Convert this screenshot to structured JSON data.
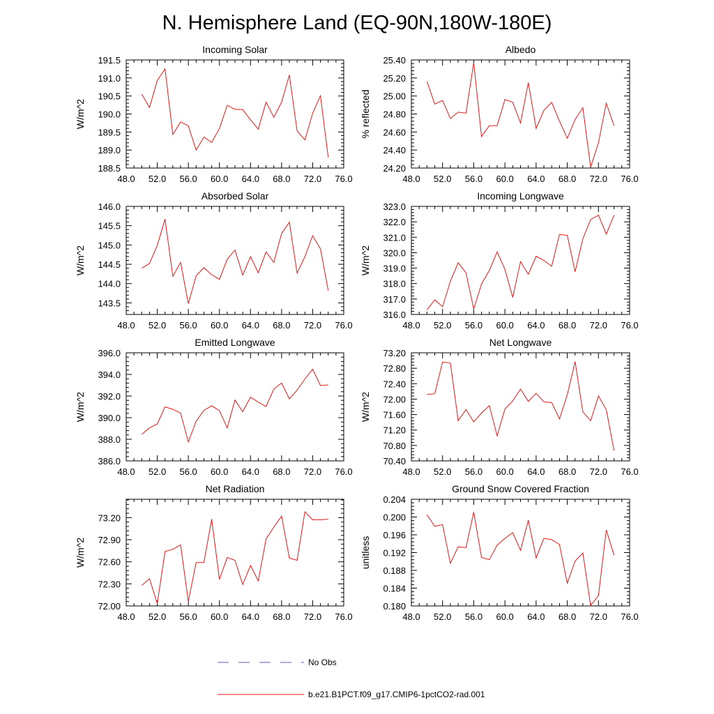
{
  "figure": {
    "title": "N. Hemisphere Land (EQ-90N,180W-180E)",
    "legend": {
      "entries": [
        {
          "label": "No Obs",
          "color": "#5b5bbd",
          "style": "dashed"
        },
        {
          "label": "b.e21.B1PCT.f09_g17.CMIP6-1pctCO2-rad.001",
          "color": "#e01818",
          "style": "solid"
        }
      ]
    }
  },
  "chart_data": [
    {
      "type": "line",
      "title": "Incoming Solar",
      "xlabel": "",
      "ylabel": "W/m^2",
      "xlim": [
        48,
        76
      ],
      "ylim": [
        188.5,
        191.5
      ],
      "xticks": [
        "48.0",
        "52.0",
        "56.0",
        "60.0",
        "64.0",
        "68.0",
        "72.0",
        "76.0"
      ],
      "yticks": [
        "188.5",
        "189.0",
        "189.5",
        "190.0",
        "190.5",
        "191.0",
        "191.5"
      ],
      "series": [
        {
          "color": "#e01818",
          "x": [
            50,
            51,
            52,
            53,
            54,
            55,
            56,
            57,
            58,
            59,
            60,
            61,
            62,
            63,
            64,
            65,
            66,
            67,
            68,
            69,
            70,
            71,
            72,
            73,
            74
          ],
          "y": [
            190.55,
            190.18,
            190.93,
            191.25,
            189.43,
            189.78,
            189.67,
            189.0,
            189.36,
            189.21,
            189.6,
            190.24,
            190.13,
            190.12,
            189.84,
            189.58,
            190.33,
            189.91,
            190.33,
            191.08,
            189.53,
            189.28,
            190.02,
            190.51,
            188.8
          ]
        }
      ]
    },
    {
      "type": "line",
      "title": "Albedo",
      "xlabel": "",
      "ylabel": "% reflected",
      "xlim": [
        48,
        76
      ],
      "ylim": [
        24.2,
        25.4
      ],
      "xticks": [
        "48.0",
        "52.0",
        "56.0",
        "60.0",
        "64.0",
        "68.0",
        "72.0",
        "76.0"
      ],
      "yticks": [
        "24.20",
        "24.40",
        "24.60",
        "24.80",
        "25.00",
        "25.20",
        "25.40"
      ],
      "series": [
        {
          "color": "#e01818",
          "x": [
            50,
            51,
            52,
            53,
            54,
            55,
            56,
            57,
            58,
            59,
            60,
            61,
            62,
            63,
            64,
            65,
            66,
            67,
            68,
            69,
            70,
            71,
            72,
            73,
            74
          ],
          "y": [
            25.16,
            24.91,
            24.95,
            24.75,
            24.82,
            24.81,
            25.37,
            24.55,
            24.67,
            24.67,
            24.96,
            24.93,
            24.7,
            25.15,
            24.64,
            24.84,
            24.93,
            24.72,
            24.53,
            24.74,
            24.87,
            24.21,
            24.48,
            24.92,
            24.67
          ]
        }
      ]
    },
    {
      "type": "line",
      "title": "Absorbed Solar",
      "xlabel": "",
      "ylabel": "W/m^2",
      "xlim": [
        48,
        76
      ],
      "ylim": [
        143.2,
        146.0
      ],
      "xticks": [
        "48.0",
        "52.0",
        "56.0",
        "60.0",
        "64.0",
        "68.0",
        "72.0",
        "76.0"
      ],
      "yticks": [
        "143.5",
        "144.0",
        "144.5",
        "145.0",
        "145.5",
        "146.0"
      ],
      "series": [
        {
          "color": "#e01818",
          "x": [
            50,
            51,
            52,
            53,
            54,
            55,
            56,
            57,
            58,
            59,
            60,
            61,
            62,
            63,
            64,
            65,
            66,
            67,
            68,
            69,
            70,
            71,
            72,
            73,
            74
          ],
          "y": [
            144.4,
            144.52,
            144.99,
            145.67,
            144.19,
            144.55,
            143.48,
            144.2,
            144.41,
            144.23,
            144.11,
            144.63,
            144.87,
            144.22,
            144.7,
            144.28,
            144.82,
            144.55,
            145.3,
            145.59,
            144.27,
            144.7,
            145.24,
            144.9,
            143.82
          ]
        }
      ]
    },
    {
      "type": "line",
      "title": "Incoming Longwave",
      "xlabel": "",
      "ylabel": "W/m^2",
      "xlim": [
        48,
        76
      ],
      "ylim": [
        316.0,
        323.0
      ],
      "xticks": [
        "48.0",
        "52.0",
        "56.0",
        "60.0",
        "64.0",
        "68.0",
        "72.0",
        "76.0"
      ],
      "yticks": [
        "316.0",
        "317.0",
        "318.0",
        "319.0",
        "320.0",
        "321.0",
        "322.0",
        "323.0"
      ],
      "series": [
        {
          "color": "#e01818",
          "x": [
            50,
            51,
            52,
            53,
            54,
            55,
            56,
            57,
            58,
            59,
            60,
            61,
            62,
            63,
            64,
            65,
            66,
            67,
            68,
            69,
            70,
            71,
            72,
            73,
            74
          ],
          "y": [
            316.3,
            316.95,
            316.5,
            318.15,
            319.35,
            318.7,
            316.35,
            317.98,
            318.85,
            320.05,
            318.93,
            317.1,
            319.42,
            318.6,
            319.77,
            319.5,
            319.12,
            321.18,
            321.12,
            318.77,
            320.9,
            322.15,
            322.43,
            321.2,
            322.43
          ]
        }
      ]
    },
    {
      "type": "line",
      "title": "Emitted Longwave",
      "xlabel": "",
      "ylabel": "W/m^2",
      "xlim": [
        48,
        76
      ],
      "ylim": [
        386.0,
        396.0
      ],
      "xticks": [
        "48.0",
        "52.0",
        "56.0",
        "60.0",
        "64.0",
        "68.0",
        "72.0",
        "76.0"
      ],
      "yticks": [
        "386.0",
        "388.0",
        "390.0",
        "392.0",
        "394.0",
        "396.0"
      ],
      "series": [
        {
          "color": "#e01818",
          "x": [
            50,
            51,
            52,
            53,
            54,
            55,
            56,
            57,
            58,
            59,
            60,
            61,
            62,
            63,
            64,
            65,
            66,
            67,
            68,
            69,
            70,
            71,
            72,
            73,
            74
          ],
          "y": [
            388.45,
            389.05,
            389.42,
            391.0,
            390.77,
            390.43,
            387.75,
            389.67,
            390.67,
            391.1,
            390.64,
            389.05,
            391.63,
            390.55,
            391.9,
            391.43,
            391.03,
            392.65,
            393.2,
            391.74,
            392.55,
            393.58,
            394.48,
            392.97,
            393.03
          ]
        }
      ]
    },
    {
      "type": "line",
      "title": "Net Longwave",
      "xlabel": "",
      "ylabel": "W/m^2",
      "xlim": [
        48,
        76
      ],
      "ylim": [
        70.4,
        73.2
      ],
      "xticks": [
        "48.0",
        "52.0",
        "56.0",
        "60.0",
        "64.0",
        "68.0",
        "72.0",
        "76.0"
      ],
      "yticks": [
        "70.40",
        "70.80",
        "71.20",
        "71.60",
        "72.00",
        "72.40",
        "72.80",
        "73.20"
      ],
      "series": [
        {
          "color": "#e01818",
          "x": [
            50,
            51,
            52,
            53,
            54,
            55,
            56,
            57,
            58,
            59,
            60,
            61,
            62,
            63,
            64,
            65,
            66,
            67,
            68,
            69,
            70,
            71,
            72,
            73,
            74
          ],
          "y": [
            72.12,
            72.14,
            72.96,
            72.94,
            71.44,
            71.73,
            71.41,
            71.64,
            71.83,
            71.05,
            71.74,
            71.95,
            72.26,
            71.94,
            72.15,
            71.93,
            71.91,
            71.49,
            72.11,
            72.97,
            71.67,
            71.44,
            72.08,
            71.73,
            70.67
          ]
        }
      ]
    },
    {
      "type": "line",
      "title": "Net Radiation",
      "xlabel": "",
      "ylabel": "W/m^2",
      "xlim": [
        48,
        76
      ],
      "ylim": [
        72.0,
        73.45
      ],
      "xticks": [
        "48.0",
        "52.0",
        "56.0",
        "60.0",
        "64.0",
        "68.0",
        "72.0",
        "76.0"
      ],
      "yticks": [
        "72.00",
        "72.30",
        "72.60",
        "72.90",
        "73.20"
      ],
      "series": [
        {
          "color": "#e01818",
          "x": [
            50,
            51,
            52,
            53,
            54,
            55,
            56,
            57,
            58,
            59,
            60,
            61,
            62,
            63,
            64,
            65,
            66,
            67,
            68,
            69,
            70,
            71,
            72,
            73,
            74
          ],
          "y": [
            72.28,
            72.37,
            72.03,
            72.74,
            72.77,
            72.83,
            72.06,
            72.59,
            72.59,
            73.18,
            72.36,
            72.66,
            72.62,
            72.29,
            72.55,
            72.34,
            72.91,
            73.07,
            73.22,
            72.65,
            72.62,
            73.28,
            73.17,
            73.17,
            73.18
          ]
        }
      ]
    },
    {
      "type": "line",
      "title": "Ground Snow Covered Fraction",
      "xlabel": "",
      "ylabel": "unitless",
      "xlim": [
        48,
        76
      ],
      "ylim": [
        0.18,
        0.204
      ],
      "xticks": [
        "48.0",
        "52.0",
        "56.0",
        "60.0",
        "64.0",
        "68.0",
        "72.0",
        "76.0"
      ],
      "yticks": [
        "0.180",
        "0.184",
        "0.188",
        "0.192",
        "0.196",
        "0.200",
        "0.204"
      ],
      "series": [
        {
          "color": "#e01818",
          "x": [
            50,
            51,
            52,
            53,
            54,
            55,
            56,
            57,
            58,
            59,
            60,
            61,
            62,
            63,
            64,
            65,
            66,
            67,
            68,
            69,
            70,
            71,
            72,
            73,
            74
          ],
          "y": [
            0.2005,
            0.1979,
            0.1983,
            0.1896,
            0.1933,
            0.1931,
            0.2011,
            0.1909,
            0.1904,
            0.1937,
            0.1952,
            0.1965,
            0.1925,
            0.1993,
            0.1908,
            0.1952,
            0.1949,
            0.1938,
            0.1851,
            0.1901,
            0.1919,
            0.1801,
            0.1823,
            0.1971,
            0.1914
          ]
        }
      ]
    }
  ]
}
